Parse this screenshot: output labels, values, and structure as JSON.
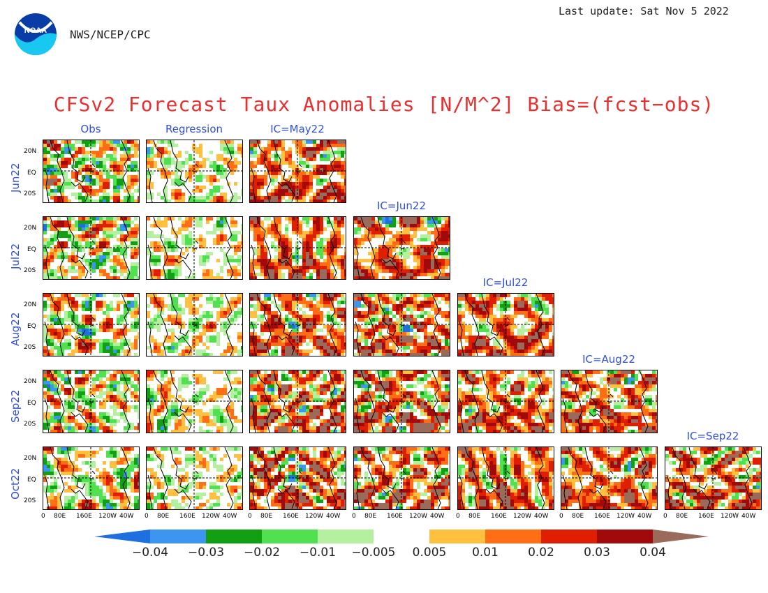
{
  "header": {
    "org": "NWS/NCEP/CPC",
    "last_update": "Last update: Sat Nov 5 2022",
    "title": "CFSv2 Forecast Taux Anomalies [N/M^2] Bias=(fcst−obs)"
  },
  "logo": {
    "text": "NOAA",
    "icon": "noaa-logo"
  },
  "columns": {
    "obs": "Obs",
    "regression": "Regression",
    "ic": [
      "IC=May22",
      "IC=Jun22",
      "IC=Jul22",
      "IC=Aug22",
      "IC=Sep22"
    ]
  },
  "rows": [
    "Jun22",
    "Jul22",
    "Aug22",
    "Sep22",
    "Oct22"
  ],
  "lat_labels": [
    "20N",
    "EQ",
    "20S"
  ],
  "lon_labels": [
    "0",
    "80E",
    "160E",
    "120W",
    "40W"
  ],
  "colorbar": {
    "labels": [
      "−0.04",
      "−0.03",
      "−0.02",
      "−0.01",
      "−0.005",
      "0.005",
      "0.01",
      "0.02",
      "0.03",
      "0.04"
    ],
    "colors": [
      "#1e6fe0",
      "#3c96f0",
      "#12a012",
      "#50e050",
      "#b4f0a0",
      "#ffffff",
      "#ffc040",
      "#ff6e14",
      "#e01e00",
      "#a00a0a",
      "#9a6a5a"
    ]
  }
}
